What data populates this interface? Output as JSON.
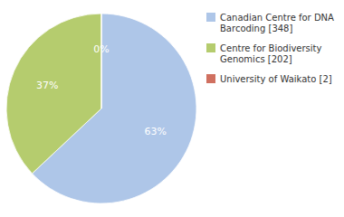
{
  "chart_data": {
    "type": "pie",
    "categories": [
      "Canadian Centre for DNA\nBarcoding [348]",
      "Centre for Biodiversity\nGenomics [202]",
      "University of Waikato [2]"
    ],
    "values": [
      63,
      37,
      0
    ],
    "value_labels": [
      "63%",
      "37%",
      "0%"
    ],
    "colors": [
      "#aec6e8",
      "#b5cc6e",
      "#d07060"
    ],
    "data_labels": true
  }
}
